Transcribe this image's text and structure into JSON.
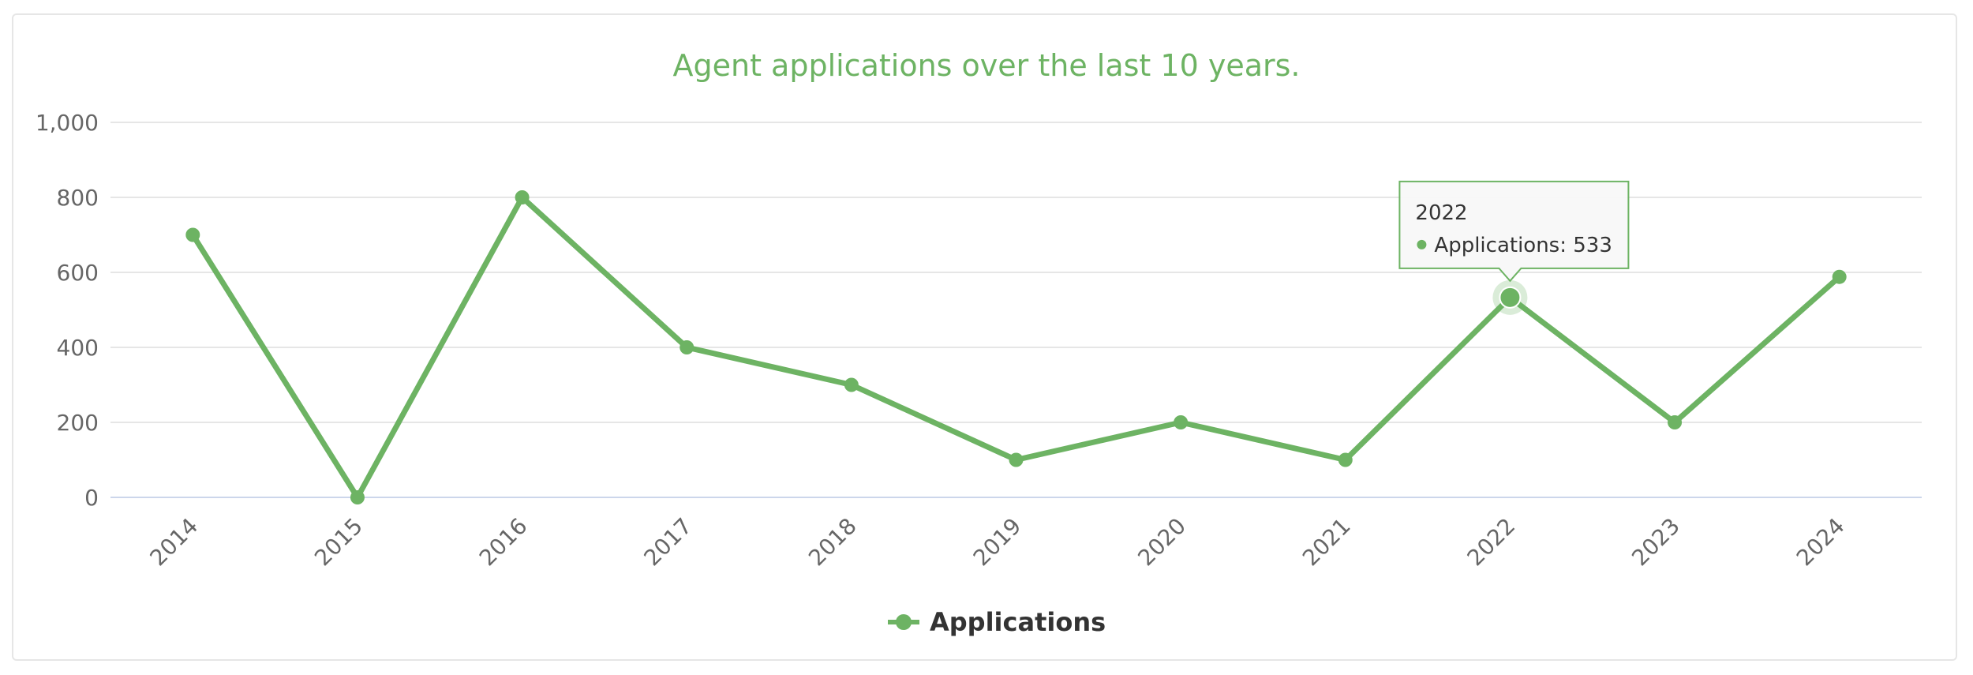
{
  "chart_data": {
    "type": "line",
    "title": "Agent applications over the last 10 years.",
    "categories": [
      "2014",
      "2015",
      "2016",
      "2017",
      "2018",
      "2019",
      "2020",
      "2021",
      "2022",
      "2023",
      "2024"
    ],
    "series": [
      {
        "name": "Applications",
        "values": [
          700,
          0,
          800,
          400,
          300,
          100,
          200,
          100,
          533,
          200,
          588
        ],
        "color": "#6db363"
      }
    ],
    "ylim": [
      0,
      1000
    ],
    "yticks": [
      0,
      200,
      400,
      600,
      800,
      1000
    ],
    "ytick_labels": [
      "0",
      "200",
      "400",
      "600",
      "800",
      "1,000"
    ],
    "grid": true,
    "legend_position": "bottom-center",
    "tooltip": {
      "category": "2022",
      "label": "Applications: 533"
    }
  }
}
